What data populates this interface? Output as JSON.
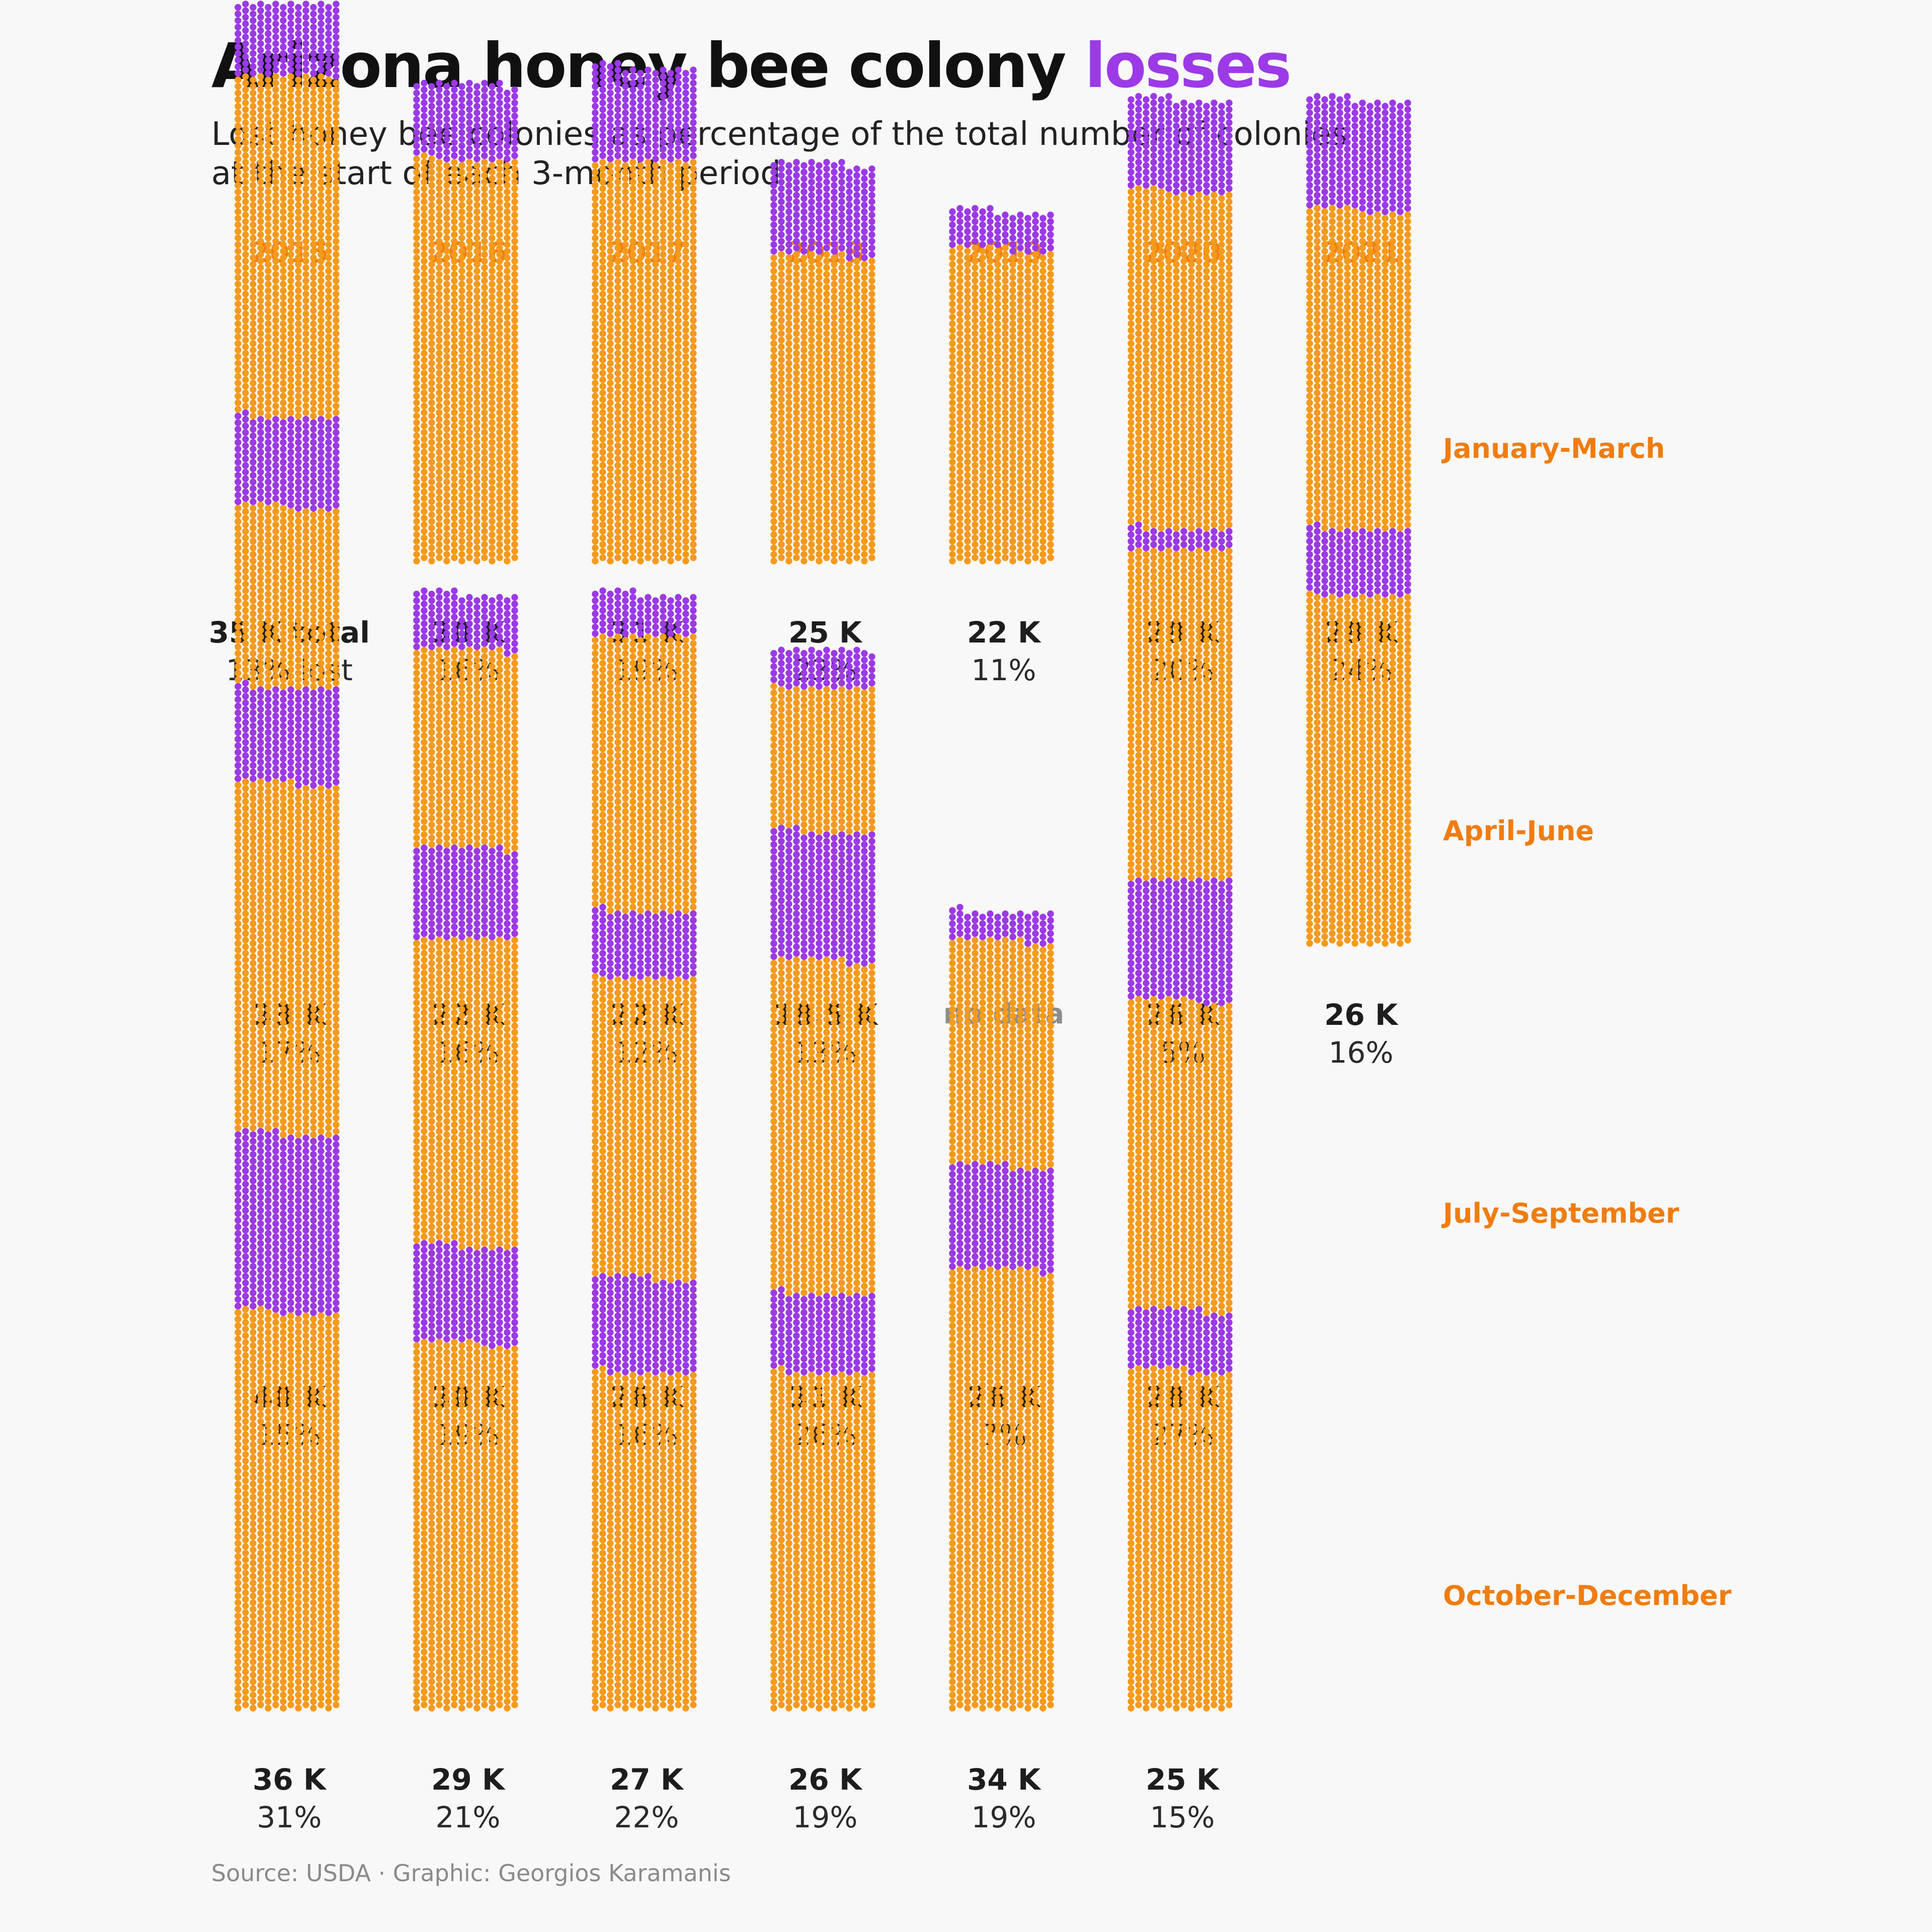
{
  "header": {
    "title_main": "Arizona honey bee colony",
    "title_accent": "losses",
    "subtitle_line1": "Lost honey bee colonies as percentage of the total number of colonies",
    "subtitle_line2": "at the start of each 3-month period"
  },
  "footer": {
    "source": "Source: USDA · Graphic: Georgios Karamanis"
  },
  "colors": {
    "colonies": "#f59a1c",
    "lost": "#9b3ae6",
    "accent_text": "#ee7d12",
    "no_data": "#8c8c8c",
    "background": "#f8f8f8"
  },
  "chart_data": {
    "type": "waffle",
    "title": "Arizona honey bee colony losses",
    "subtitle": "Lost honey bee colonies as percentage of the total number of colonies at the start of each 3-month period",
    "years": [
      "2015",
      "2016",
      "2017",
      "2018",
      "2019",
      "2020",
      "2021"
    ],
    "periods": [
      "January-March",
      "April-June",
      "July-September",
      "October-December"
    ],
    "value_unit": "thousand colonies",
    "no_data_label": "no data",
    "series": [
      {
        "period": "January-March",
        "cells": [
          {
            "year": "2015",
            "total": 35,
            "total_label": "35 K total",
            "lost_pct": 13,
            "pct_label": "13% lost"
          },
          {
            "year": "2016",
            "total": 30,
            "total_label": "30 K",
            "lost_pct": 16,
            "pct_label": "16%"
          },
          {
            "year": "2017",
            "total": 31,
            "total_label": "31 K",
            "lost_pct": 19,
            "pct_label": "19%"
          },
          {
            "year": "2018",
            "total": 25,
            "total_label": "25 K",
            "lost_pct": 23,
            "pct_label": "23%"
          },
          {
            "year": "2019",
            "total": 22,
            "total_label": "22 K",
            "lost_pct": 11,
            "pct_label": "11%"
          },
          {
            "year": "2020",
            "total": 29,
            "total_label": "29 K",
            "lost_pct": 20,
            "pct_label": "20%"
          },
          {
            "year": "2021",
            "total": 29,
            "total_label": "29 K",
            "lost_pct": 24,
            "pct_label": "24%"
          }
        ]
      },
      {
        "period": "April-June",
        "cells": [
          {
            "year": "2015",
            "total": 33,
            "total_label": "33 K",
            "lost_pct": 17,
            "pct_label": "17%"
          },
          {
            "year": "2016",
            "total": 22,
            "total_label": "22 K",
            "lost_pct": 16,
            "pct_label": "16%"
          },
          {
            "year": "2017",
            "total": 22,
            "total_label": "22 K",
            "lost_pct": 12,
            "pct_label": "12%"
          },
          {
            "year": "2018",
            "total": 18.5,
            "total_label": "18.5 K",
            "lost_pct": 13,
            "pct_label": "13%"
          },
          {
            "year": "2019",
            "total": null,
            "total_label": "no data",
            "lost_pct": null,
            "pct_label": ""
          },
          {
            "year": "2020",
            "total": 26,
            "total_label": "26 K",
            "lost_pct": 5,
            "pct_label": "5%"
          },
          {
            "year": "2021",
            "total": 26,
            "total_label": "26 K",
            "lost_pct": 16,
            "pct_label": "16%"
          }
        ]
      },
      {
        "period": "July-September",
        "cells": [
          {
            "year": "2015",
            "total": 40,
            "total_label": "40 K",
            "lost_pct": 15,
            "pct_label": "15%"
          },
          {
            "year": "2016",
            "total": 30,
            "total_label": "30 K",
            "lost_pct": 19,
            "pct_label": "19%"
          },
          {
            "year": "2017",
            "total": 26,
            "total_label": "26 K",
            "lost_pct": 16,
            "pct_label": "16%"
          },
          {
            "year": "2018",
            "total": 31,
            "total_label": "31 K",
            "lost_pct": 26,
            "pct_label": "26%"
          },
          {
            "year": "2019",
            "total": 26,
            "total_label": "26 K",
            "lost_pct": 7,
            "pct_label": "7%"
          },
          {
            "year": "2020",
            "total": 28,
            "total_label": "28 K",
            "lost_pct": 27,
            "pct_label": "27%"
          }
        ]
      },
      {
        "period": "October-December",
        "cells": [
          {
            "year": "2015",
            "total": 36,
            "total_label": "36 K",
            "lost_pct": 31,
            "pct_label": "31%"
          },
          {
            "year": "2016",
            "total": 29,
            "total_label": "29 K",
            "lost_pct": 21,
            "pct_label": "21%"
          },
          {
            "year": "2017",
            "total": 27,
            "total_label": "27 K",
            "lost_pct": 22,
            "pct_label": "22%"
          },
          {
            "year": "2018",
            "total": 26,
            "total_label": "26 K",
            "lost_pct": 19,
            "pct_label": "19%"
          },
          {
            "year": "2019",
            "total": 34,
            "total_label": "34 K",
            "lost_pct": 19,
            "pct_label": "19%"
          },
          {
            "year": "2020",
            "total": 25,
            "total_label": "25 K",
            "lost_pct": 15,
            "pct_label": "15%"
          }
        ]
      }
    ]
  }
}
